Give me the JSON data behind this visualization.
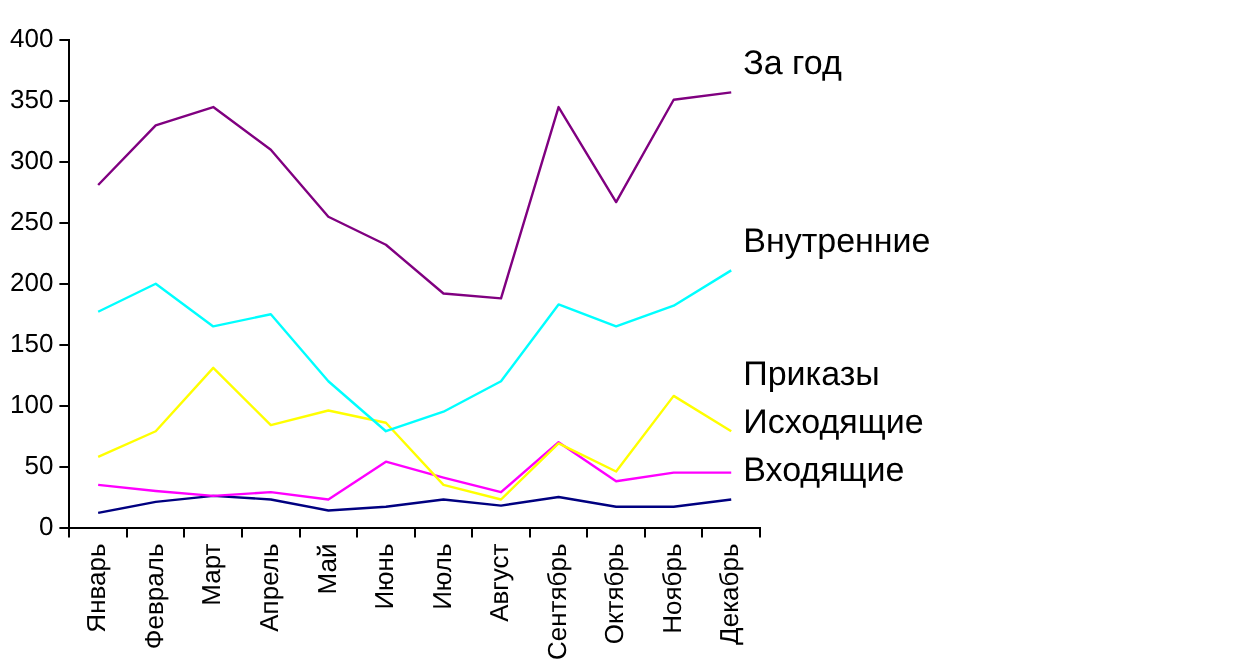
{
  "chart_data": {
    "type": "line",
    "categories": [
      "Январь",
      "Февраль",
      "Март",
      "Апрель",
      "Май",
      "Июнь",
      "Июль",
      "Август",
      "Сентябрь",
      "Октябрь",
      "Ноябрь",
      "Декабрь"
    ],
    "series": [
      {
        "name": "За год",
        "color": "#800080",
        "values": [
          281,
          330,
          345,
          310,
          255,
          232,
          192,
          188,
          345,
          267,
          351,
          357
        ]
      },
      {
        "name": "Внутренние",
        "color": "#00ffff",
        "values": [
          177,
          200,
          165,
          175,
          120,
          79,
          95,
          120,
          183,
          165,
          182,
          211
        ]
      },
      {
        "name": "Приказы",
        "color": "#ffff00",
        "values": [
          58,
          79,
          131,
          84,
          96,
          86,
          35,
          23,
          69,
          46,
          108,
          79
        ]
      },
      {
        "name": "Исходящие",
        "color": "#ff00ff",
        "values": [
          35,
          30,
          26,
          29,
          23,
          54,
          41,
          29,
          70,
          38,
          45,
          45
        ]
      },
      {
        "name": "Входящие",
        "color": "#000080",
        "values": [
          12,
          21,
          26,
          23,
          14,
          17,
          23,
          18,
          25,
          17,
          17,
          23
        ]
      }
    ],
    "ylim": [
      0,
      400
    ],
    "yticks": [
      0,
      50,
      100,
      150,
      200,
      250,
      300,
      350,
      400
    ],
    "grid": false,
    "legend": false,
    "marker": "none",
    "line_style": "solid"
  }
}
